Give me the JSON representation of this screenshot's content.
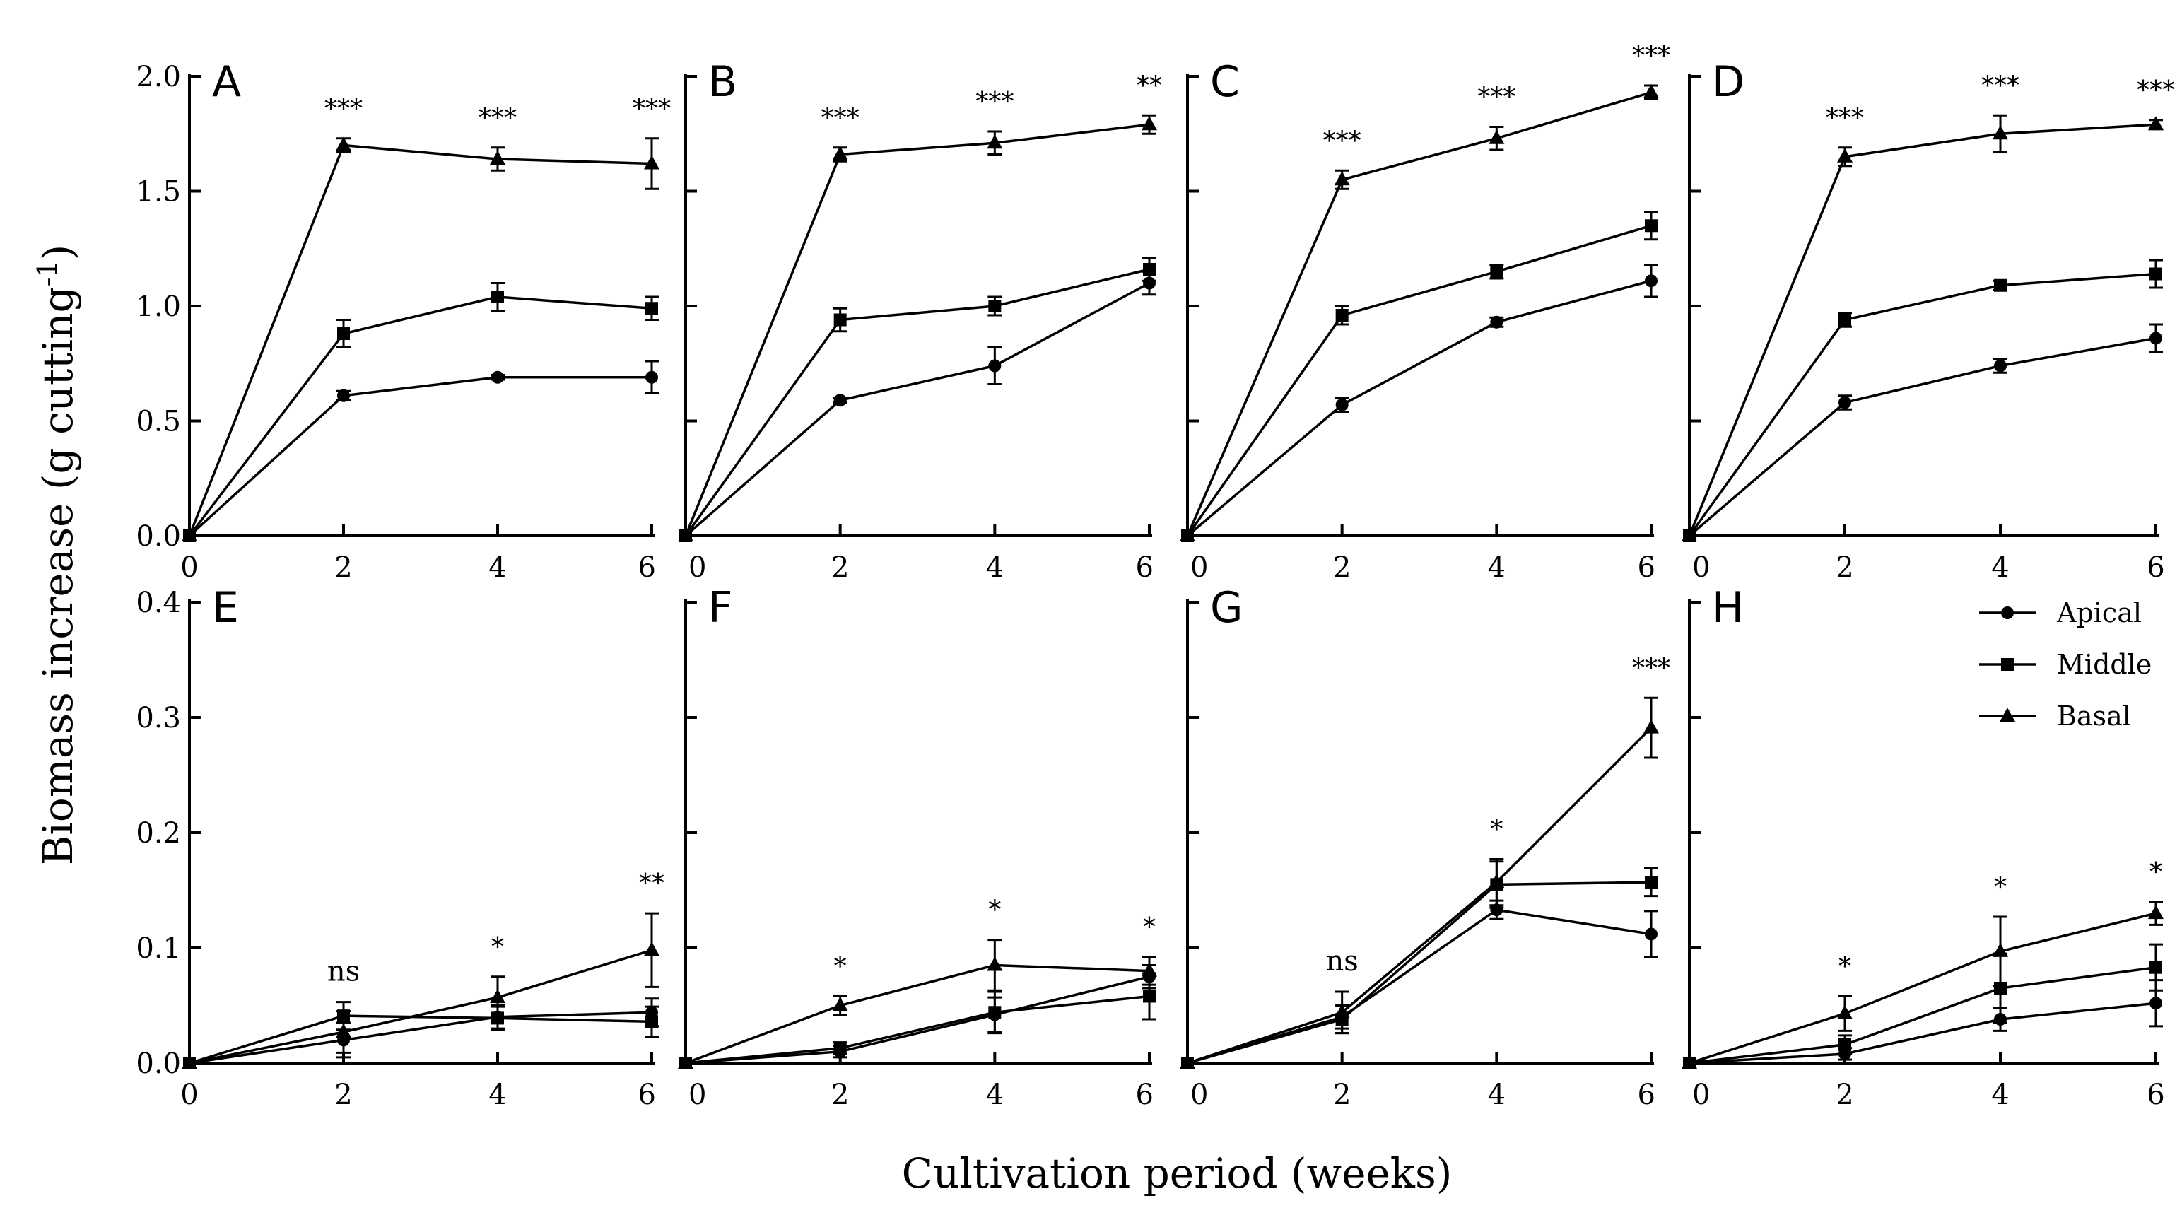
{
  "x_axis_title": "Cultivation period (weeks)",
  "y_axis_title": "Biomass increase (g cutting",
  "y_axis_title_exponent": "-1",
  "y_axis_title_close": ")",
  "legend": [
    {
      "name": "Apical",
      "marker": "circle"
    },
    {
      "name": "Middle",
      "marker": "square"
    },
    {
      "name": "Basal",
      "marker": "triangle"
    }
  ],
  "chart_data": [
    {
      "panel": "A",
      "type": "line",
      "x": [
        0,
        2,
        4,
        6
      ],
      "ylim": [
        0,
        2.0
      ],
      "yticks": [
        "0.0",
        "0.5",
        "1.0",
        "1.5",
        "2.0"
      ],
      "xticks": [
        "0",
        "2",
        "4",
        "6"
      ],
      "series": [
        {
          "name": "Apical",
          "values": [
            0,
            0.61,
            0.69,
            0.69
          ],
          "errors": [
            0,
            0.02,
            0.01,
            0.07
          ]
        },
        {
          "name": "Middle",
          "values": [
            0,
            0.88,
            1.04,
            0.99
          ],
          "errors": [
            0,
            0.06,
            0.06,
            0.05
          ]
        },
        {
          "name": "Basal",
          "values": [
            0,
            1.7,
            1.64,
            1.62
          ],
          "errors": [
            0,
            0.03,
            0.05,
            0.11
          ]
        }
      ],
      "annotations": [
        "",
        "***",
        "***",
        "***"
      ]
    },
    {
      "panel": "B",
      "type": "line",
      "x": [
        0,
        2,
        4,
        6
      ],
      "ylim": [
        0,
        2.0
      ],
      "yticks": [],
      "xticks": [
        "0",
        "2",
        "4",
        "6"
      ],
      "series": [
        {
          "name": "Apical",
          "values": [
            0,
            0.59,
            0.74,
            1.1
          ],
          "errors": [
            0,
            0.01,
            0.08,
            0.05
          ]
        },
        {
          "name": "Middle",
          "values": [
            0,
            0.94,
            1.0,
            1.16
          ],
          "errors": [
            0,
            0.05,
            0.04,
            0.05
          ]
        },
        {
          "name": "Basal",
          "values": [
            0,
            1.66,
            1.71,
            1.79
          ],
          "errors": [
            0,
            0.03,
            0.05,
            0.04
          ]
        }
      ],
      "annotations": [
        "",
        "***",
        "***",
        "**"
      ]
    },
    {
      "panel": "C",
      "type": "line",
      "x": [
        0,
        2,
        4,
        6
      ],
      "ylim": [
        0,
        2.0
      ],
      "yticks": [],
      "xticks": [
        "0",
        "2",
        "4",
        "6"
      ],
      "series": [
        {
          "name": "Apical",
          "values": [
            0,
            0.57,
            0.93,
            1.11
          ],
          "errors": [
            0,
            0.03,
            0.02,
            0.07
          ]
        },
        {
          "name": "Middle",
          "values": [
            0,
            0.96,
            1.15,
            1.35
          ],
          "errors": [
            0,
            0.04,
            0.03,
            0.06
          ]
        },
        {
          "name": "Basal",
          "values": [
            0,
            1.55,
            1.73,
            1.93
          ],
          "errors": [
            0,
            0.04,
            0.05,
            0.03
          ]
        }
      ],
      "annotations": [
        "",
        "***",
        "***",
        "***"
      ]
    },
    {
      "panel": "D",
      "type": "line",
      "x": [
        0,
        2,
        4,
        6
      ],
      "ylim": [
        0,
        2.0
      ],
      "yticks": [],
      "xticks": [
        "0",
        "2",
        "4",
        "6"
      ],
      "series": [
        {
          "name": "Apical",
          "values": [
            0,
            0.58,
            0.74,
            0.86
          ],
          "errors": [
            0,
            0.03,
            0.03,
            0.06
          ]
        },
        {
          "name": "Middle",
          "values": [
            0,
            0.94,
            1.09,
            1.14
          ],
          "errors": [
            0,
            0.03,
            0.02,
            0.06
          ]
        },
        {
          "name": "Basal",
          "values": [
            0,
            1.65,
            1.75,
            1.79
          ],
          "errors": [
            0,
            0.04,
            0.08,
            0.02
          ]
        }
      ],
      "annotations": [
        "",
        "***",
        "***",
        "***"
      ]
    },
    {
      "panel": "E",
      "type": "line",
      "x": [
        0,
        2,
        4,
        6
      ],
      "ylim": [
        0,
        0.4
      ],
      "yticks": [
        "0.0",
        "0.1",
        "0.2",
        "0.3",
        "0.4"
      ],
      "xticks": [
        "0",
        "2",
        "4",
        "6"
      ],
      "series": [
        {
          "name": "Apical",
          "values": [
            0,
            0.02,
            0.04,
            0.044
          ],
          "errors": [
            0,
            0.015,
            0.01,
            0.012
          ]
        },
        {
          "name": "Middle",
          "values": [
            0,
            0.041,
            0.039,
            0.036
          ],
          "errors": [
            0,
            0.012,
            0.01,
            0.013
          ]
        },
        {
          "name": "Basal",
          "values": [
            0,
            0.027,
            0.057,
            0.098
          ],
          "errors": [
            0,
            0.018,
            0.018,
            0.032
          ]
        }
      ],
      "annotations": [
        "",
        "ns",
        "*",
        "**"
      ]
    },
    {
      "panel": "F",
      "type": "line",
      "x": [
        0,
        2,
        4,
        6
      ],
      "ylim": [
        0,
        0.4
      ],
      "yticks": [],
      "xticks": [
        "0",
        "2",
        "4",
        "6"
      ],
      "series": [
        {
          "name": "Apical",
          "values": [
            0,
            0.01,
            0.042,
            0.075
          ],
          "errors": [
            0,
            0.005,
            0.015,
            0.01
          ]
        },
        {
          "name": "Middle",
          "values": [
            0,
            0.013,
            0.044,
            0.058
          ],
          "errors": [
            0,
            0.005,
            0.018,
            0.02
          ]
        },
        {
          "name": "Basal",
          "values": [
            0,
            0.05,
            0.085,
            0.08
          ],
          "errors": [
            0,
            0.008,
            0.022,
            0.012
          ]
        }
      ],
      "annotations": [
        "",
        "*",
        "*",
        "*"
      ]
    },
    {
      "panel": "G",
      "type": "line",
      "x": [
        0,
        2,
        4,
        6
      ],
      "ylim": [
        0,
        0.4
      ],
      "yticks": [],
      "xticks": [
        "0",
        "2",
        "4",
        "6"
      ],
      "series": [
        {
          "name": "Apical",
          "values": [
            0,
            0.04,
            0.133,
            0.112
          ],
          "errors": [
            0,
            0.01,
            0.008,
            0.02
          ]
        },
        {
          "name": "Middle",
          "values": [
            0,
            0.038,
            0.155,
            0.157
          ],
          "errors": [
            0,
            0.012,
            0.02,
            0.012
          ]
        },
        {
          "name": "Basal",
          "values": [
            0,
            0.044,
            0.157,
            0.291
          ],
          "errors": [
            0,
            0.018,
            0.02,
            0.026
          ]
        }
      ],
      "annotations": [
        "",
        "ns",
        "*",
        "***"
      ]
    },
    {
      "panel": "H",
      "type": "line",
      "x": [
        0,
        2,
        4,
        6
      ],
      "ylim": [
        0,
        0.4
      ],
      "yticks": [],
      "xticks": [
        "0",
        "2",
        "4",
        "6"
      ],
      "series": [
        {
          "name": "Apical",
          "values": [
            0,
            0.008,
            0.038,
            0.052
          ],
          "errors": [
            0,
            0.005,
            0.01,
            0.02
          ]
        },
        {
          "name": "Middle",
          "values": [
            0,
            0.016,
            0.065,
            0.083
          ],
          "errors": [
            0,
            0.008,
            0.03,
            0.02
          ]
        },
        {
          "name": "Basal",
          "values": [
            0,
            0.043,
            0.097,
            0.13
          ],
          "errors": [
            0,
            0.015,
            0.03,
            0.01
          ]
        }
      ],
      "annotations": [
        "",
        "*",
        "*",
        "*"
      ]
    }
  ]
}
